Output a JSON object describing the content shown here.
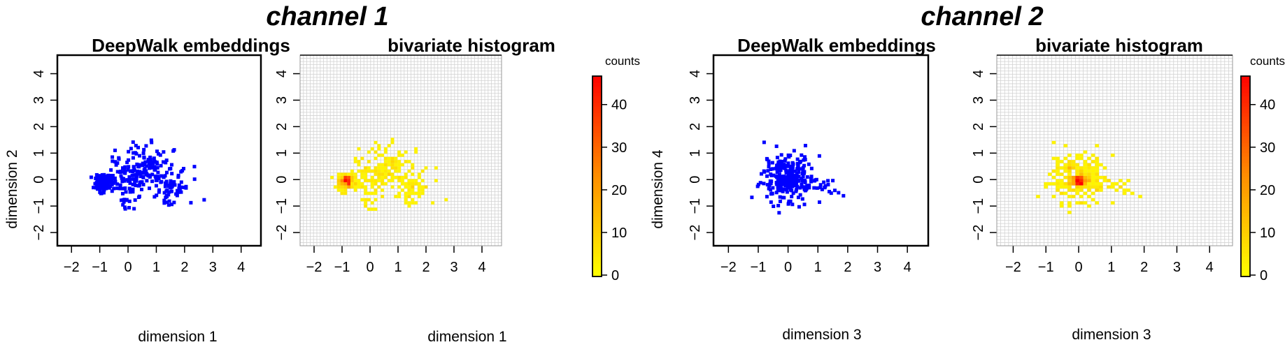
{
  "channels": [
    {
      "title": "channel 1"
    },
    {
      "title": "channel 2"
    }
  ],
  "colors": {
    "points": "#0000ff",
    "grid": "#d3d3d3",
    "low": "#ffff00",
    "mid": "#ff8c00",
    "high": "#ff0000"
  },
  "chart_data": [
    {
      "type": "scatter",
      "title": "DeepWalk embeddings",
      "xlabel": "dimension 1",
      "ylabel": "dimension 2",
      "xlim": [
        -2.5,
        4.7
      ],
      "ylim": [
        -2.5,
        4.7
      ],
      "xticks": [
        "-2",
        "-1",
        "0",
        "1",
        "2",
        "3",
        "4"
      ],
      "yticks": [
        "-2",
        "-1",
        "0",
        "1",
        "2",
        "3",
        "4"
      ],
      "point_count": 420,
      "clusters": [
        {
          "cx": -0.85,
          "cy": -0.1,
          "sx": 0.15,
          "sy": 0.15,
          "n": 160
        },
        {
          "cx": 0.5,
          "cy": 0.35,
          "sx": 0.6,
          "sy": 0.45,
          "n": 190
        },
        {
          "cx": 1.6,
          "cy": -0.35,
          "sx": 0.35,
          "sy": 0.3,
          "n": 50
        },
        {
          "cx": 0.0,
          "cy": -0.8,
          "sx": 0.2,
          "sy": 0.25,
          "n": 20
        }
      ]
    },
    {
      "type": "heatmap",
      "title": "bivariate histogram",
      "xlabel": "dimension 1",
      "ylabel": "",
      "xlim": [
        -2.5,
        4.7
      ],
      "ylim": [
        -2.5,
        4.7
      ],
      "bins": 60,
      "xticks": [
        "-2",
        "-1",
        "0",
        "1",
        "2",
        "3",
        "4"
      ],
      "yticks": [
        "-2",
        "-1",
        "0",
        "1",
        "2",
        "3",
        "4"
      ],
      "colorbar": {
        "label": "counts",
        "min": 0,
        "max": 47,
        "ticks": [
          "0",
          "10",
          "20",
          "30",
          "40"
        ]
      },
      "max_count": 47,
      "peak": [
        -0.85,
        -0.05
      ]
    },
    {
      "type": "scatter",
      "title": "DeepWalk embeddings",
      "xlabel": "dimension 3",
      "ylabel": "dimension 4",
      "xlim": [
        -2.5,
        4.7
      ],
      "ylim": [
        -2.5,
        4.7
      ],
      "xticks": [
        "-2",
        "-1",
        "0",
        "1",
        "2",
        "3",
        "4"
      ],
      "yticks": [
        "-2",
        "-1",
        "0",
        "1",
        "2",
        "3",
        "4"
      ],
      "point_count": 420,
      "clusters": [
        {
          "cx": 0.0,
          "cy": -0.05,
          "sx": 0.1,
          "sy": 0.1,
          "n": 150
        },
        {
          "cx": 0.0,
          "cy": 0.1,
          "sx": 0.45,
          "sy": 0.45,
          "n": 250
        },
        {
          "cx": 1.2,
          "cy": -0.3,
          "sx": 0.3,
          "sy": 0.25,
          "n": 20
        }
      ]
    },
    {
      "type": "heatmap",
      "title": "bivariate histogram",
      "xlabel": "dimension 3",
      "ylabel": "",
      "xlim": [
        -2.5,
        4.7
      ],
      "ylim": [
        -2.5,
        4.7
      ],
      "bins": 60,
      "xticks": [
        "-2",
        "-1",
        "0",
        "1",
        "2",
        "3",
        "4"
      ],
      "yticks": [
        "-2",
        "-1",
        "0",
        "1",
        "2",
        "3",
        "4"
      ],
      "colorbar": {
        "label": "counts",
        "min": 0,
        "max": 47,
        "ticks": [
          "0",
          "10",
          "20",
          "30",
          "40"
        ]
      },
      "max_count": 47,
      "peak": [
        0.0,
        -0.05
      ]
    }
  ]
}
